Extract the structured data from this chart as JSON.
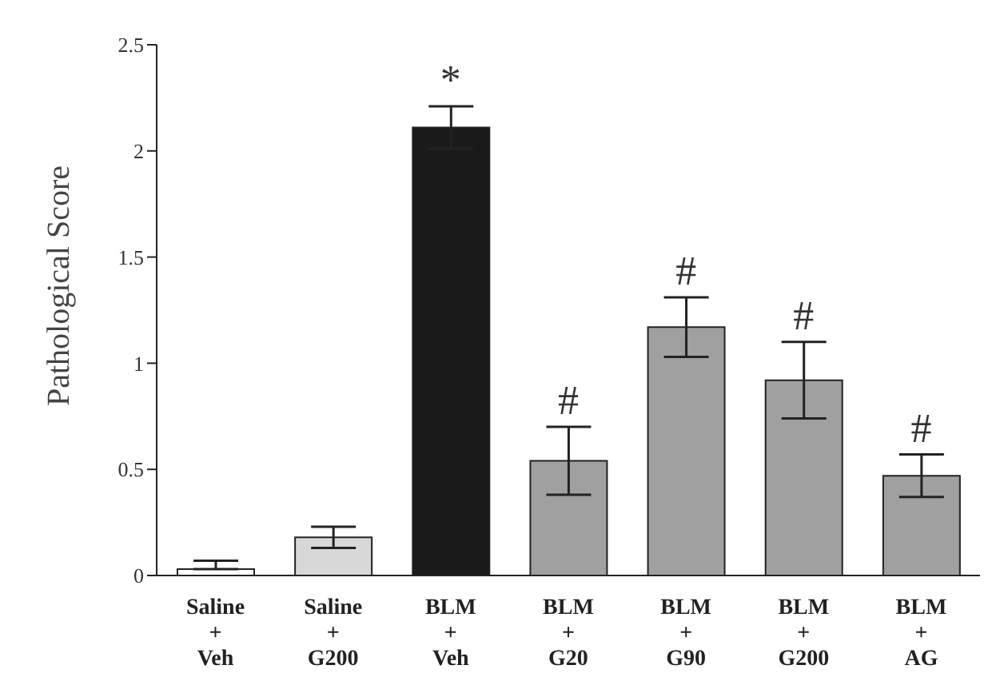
{
  "chart_data": {
    "type": "bar",
    "ylabel": "Pathological Score",
    "categories": [
      "Saline\n+\nVeh",
      "Saline\n+\nG200",
      "BLM\n+\nVeh",
      "BLM\n+\nG20",
      "BLM\n+\nG90",
      "BLM\n+\nG200",
      "BLM\n+\nAG"
    ],
    "values": [
      0.03,
      0.18,
      2.11,
      0.54,
      1.17,
      0.92,
      0.47
    ],
    "errors": [
      [
        0.03,
        0.07
      ],
      0.05,
      0.1,
      0.16,
      0.14,
      0.18,
      0.1
    ],
    "colors": [
      "#ffffff",
      "#d8d8d8",
      "#1a1a1a",
      "#a0a0a0",
      "#a0a0a0",
      "#a0a0a0",
      "#a0a0a0"
    ],
    "ylim": [
      0,
      2.5
    ],
    "yticks": [
      0,
      0.5,
      1,
      1.5,
      2,
      2.5
    ],
    "grid": false,
    "legend": false,
    "annotations": [
      {
        "text": "*",
        "x": "BLM\n+\nVeh",
        "y": 2.11
      },
      {
        "text": "#",
        "x": "BLM\n+\nG20",
        "y": 0.54
      },
      {
        "text": "#",
        "x": "BLM\n+\nG90",
        "y": 1.17
      },
      {
        "text": "#",
        "x": "BLM\n+\nG200",
        "y": 0.92
      },
      {
        "text": "#",
        "x": "BLM\n+\nAG",
        "y": 0.47
      }
    ]
  }
}
